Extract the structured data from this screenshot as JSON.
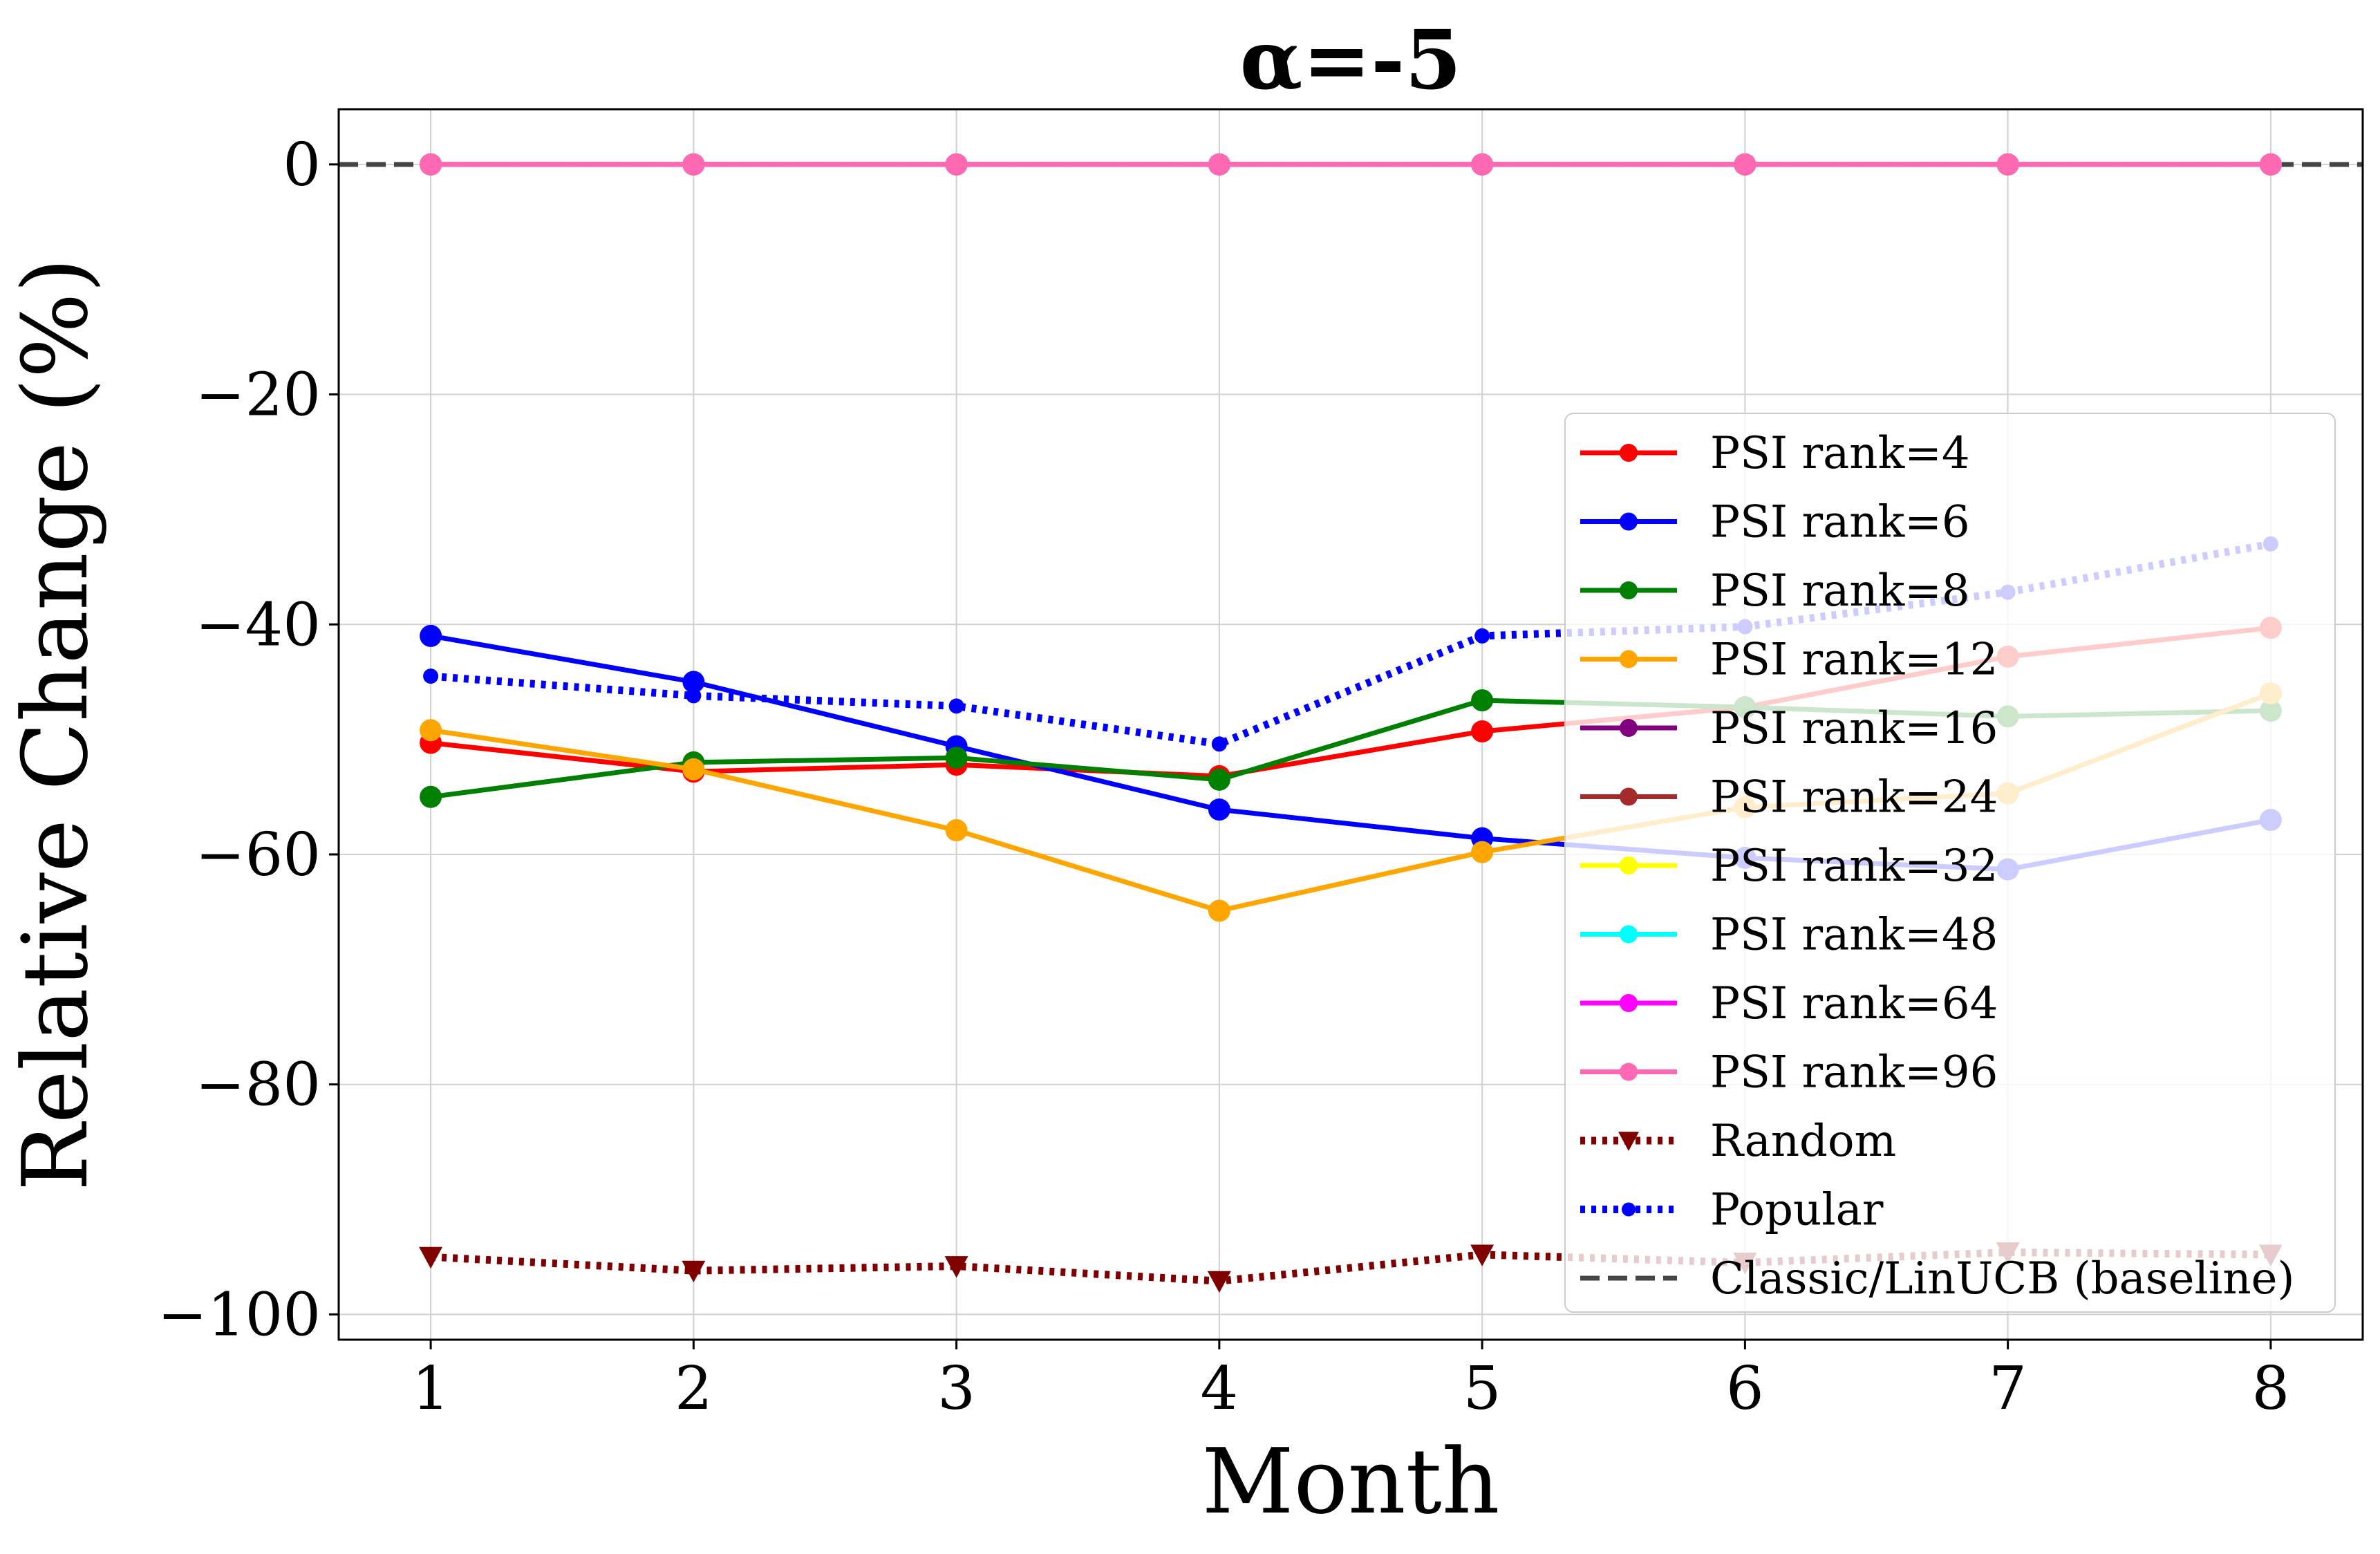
{
  "chart_data": {
    "type": "line",
    "title": "α=-5",
    "xlabel": "Month",
    "ylabel": "Relative Change (%)",
    "x": [
      1,
      2,
      3,
      4,
      5,
      6,
      7,
      8
    ],
    "xlim": [
      0.65,
      8.35
    ],
    "ylim": [
      -102.2,
      4.8
    ],
    "xticks": [
      1,
      2,
      3,
      4,
      5,
      6,
      7,
      8
    ],
    "yticks": [
      0,
      -20,
      -40,
      -60,
      -80,
      -100
    ],
    "ytick_labels": [
      "0",
      "−20",
      "−40",
      "−60",
      "−80",
      "−100"
    ],
    "grid": true,
    "legend_position": "right",
    "series": [
      {
        "name": "PSI rank=4",
        "color": "#ff0000",
        "style": "solid",
        "marker": "circle",
        "values": [
          -50.3,
          -52.8,
          -52.2,
          -53.2,
          -49.3,
          -47.2,
          -42.8,
          -40.3
        ]
      },
      {
        "name": "PSI rank=6",
        "color": "#0000ff",
        "style": "solid",
        "marker": "circle",
        "values": [
          -41.0,
          -45.0,
          -50.6,
          -56.1,
          -58.6,
          -60.3,
          -61.3,
          -57.0
        ]
      },
      {
        "name": "PSI rank=8",
        "color": "#008000",
        "style": "solid",
        "marker": "circle",
        "values": [
          -55.0,
          -52.0,
          -51.6,
          -53.5,
          -46.6,
          -47.2,
          -48.0,
          -47.5
        ]
      },
      {
        "name": "PSI rank=12",
        "color": "#ffa500",
        "style": "solid",
        "marker": "circle",
        "values": [
          -49.2,
          -52.6,
          -57.9,
          -64.9,
          -59.8,
          -55.9,
          -54.7,
          -46.0
        ]
      },
      {
        "name": "PSI rank=16",
        "color": "#800080",
        "style": "solid",
        "marker": "circle",
        "values": [
          0,
          0,
          0,
          0,
          0,
          0,
          0,
          0
        ]
      },
      {
        "name": "PSI rank=24",
        "color": "#a52a2a",
        "style": "solid",
        "marker": "circle",
        "values": [
          0,
          0,
          0,
          0,
          0,
          0,
          0,
          0
        ]
      },
      {
        "name": "PSI rank=32",
        "color": "#ffff00",
        "style": "solid",
        "marker": "circle",
        "values": [
          0,
          0,
          0,
          0,
          0,
          0,
          0,
          0
        ]
      },
      {
        "name": "PSI rank=48",
        "color": "#00ffff",
        "style": "solid",
        "marker": "circle",
        "values": [
          0,
          0,
          0,
          0,
          0,
          0,
          0,
          0
        ]
      },
      {
        "name": "PSI rank=64",
        "color": "#ff00ff",
        "style": "solid",
        "marker": "circle",
        "values": [
          0,
          0,
          0,
          0,
          0,
          0,
          0,
          0
        ]
      },
      {
        "name": "PSI rank=96",
        "color": "#ff69b4",
        "style": "solid",
        "marker": "circle",
        "values": [
          0,
          0,
          0,
          0,
          0,
          0,
          0,
          0
        ]
      },
      {
        "name": "Random",
        "color": "#800000",
        "style": "dotted",
        "marker": "triangle-down",
        "values": [
          -95.0,
          -96.2,
          -95.8,
          -97.1,
          -94.8,
          -95.5,
          -94.6,
          -94.8
        ]
      },
      {
        "name": "Popular",
        "color": "#0000ff",
        "style": "dotted",
        "marker": "small-circle",
        "values": [
          -44.5,
          -46.2,
          -47.1,
          -50.4,
          -41.0,
          -40.2,
          -37.2,
          -33.0
        ]
      },
      {
        "name": "Classic/LinUCB (baseline)",
        "color": "#444444",
        "style": "dashed",
        "marker": "none",
        "values": [
          0,
          0,
          0,
          0,
          0,
          0,
          0,
          0
        ]
      }
    ]
  }
}
